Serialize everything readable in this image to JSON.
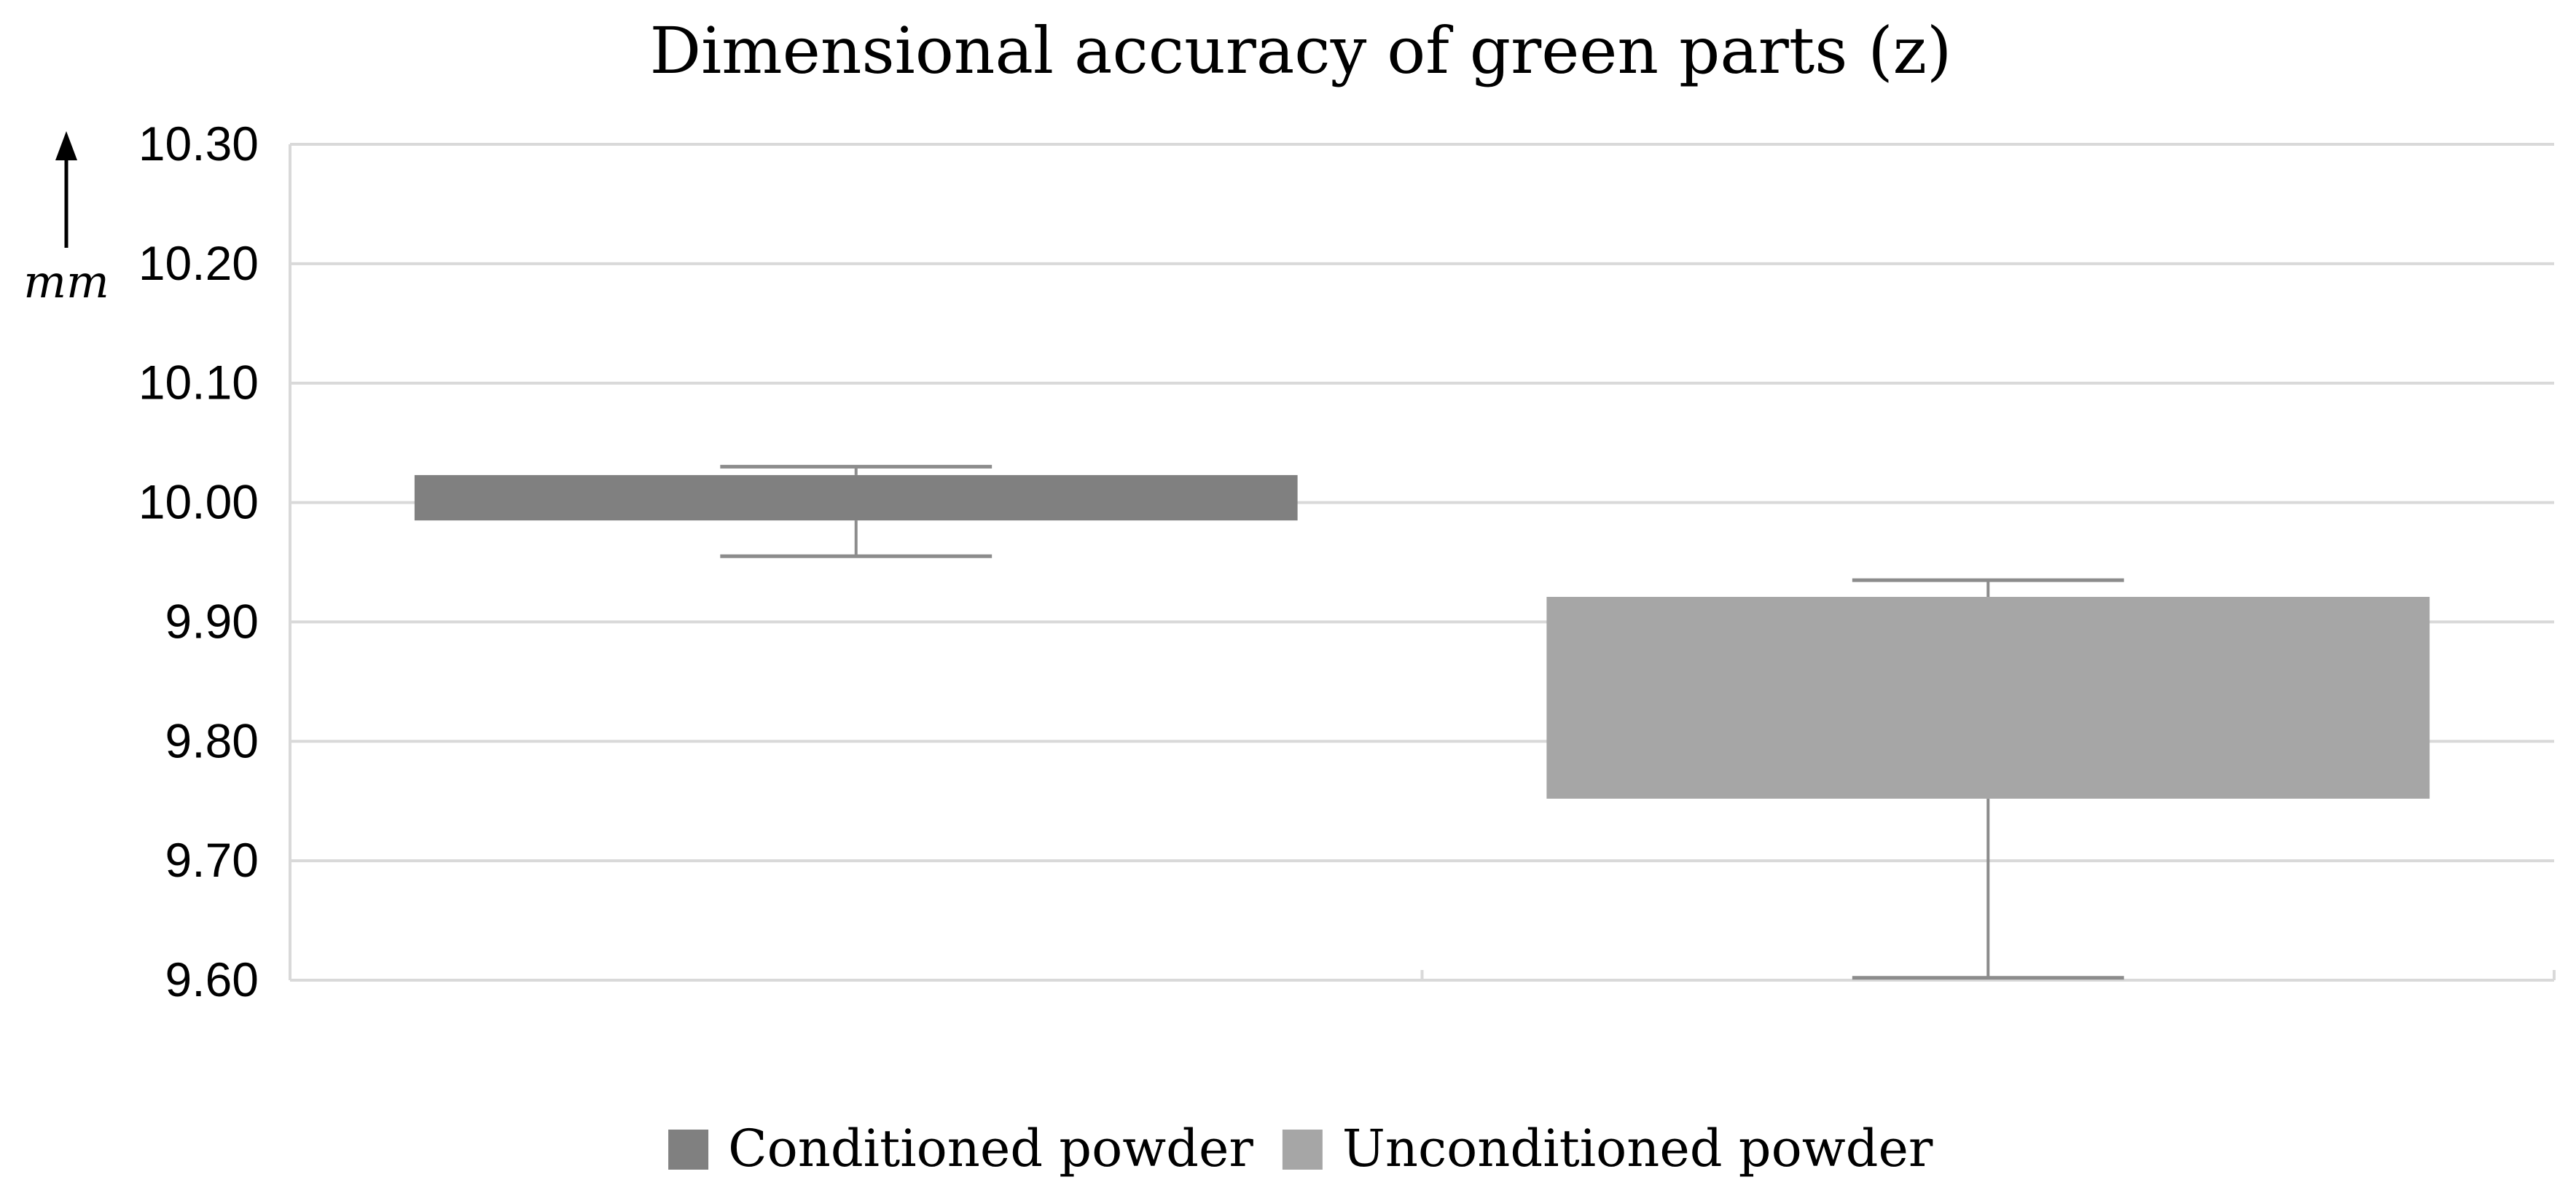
{
  "chart_data": {
    "type": "box",
    "title": "Dimensional accuracy of green parts (z)",
    "ylabel": "mm",
    "ylim": [
      9.6,
      10.3
    ],
    "yticks": [
      "10.30",
      "10.20",
      "10.10",
      "10.00",
      "9.90",
      "9.80",
      "9.70",
      "9.60"
    ],
    "grid": true,
    "legend_position": "bottom",
    "series": [
      {
        "name": "Conditioned powder",
        "color": "#808080",
        "whisker_low": 9.955,
        "q1": 9.985,
        "q3": 10.023,
        "whisker_high": 10.03
      },
      {
        "name": "Unconditioned powder",
        "color": "#a6a6a6",
        "whisker_low": 9.602,
        "q1": 9.752,
        "q3": 9.921,
        "whisker_high": 9.935
      }
    ]
  }
}
